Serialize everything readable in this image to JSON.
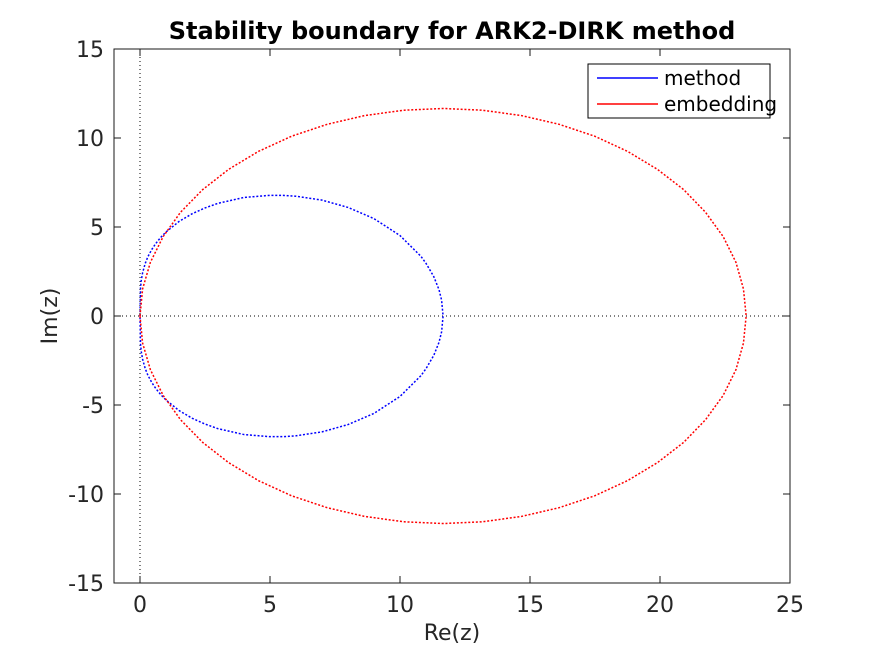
{
  "figure": {
    "background": "#ffffff",
    "axes_color": "#1a1a1a",
    "tick_text_color": "#262626"
  },
  "chart_data": {
    "type": "line",
    "title": "Stability boundary for ARK2-DIRK method",
    "xlabel": "Re(z)",
    "ylabel": "Im(z)",
    "xlim": [
      -1,
      25
    ],
    "ylim": [
      -15,
      15
    ],
    "xticks": [
      0,
      5,
      10,
      15,
      20,
      25
    ],
    "xtick_labels": [
      "0",
      "5",
      "10",
      "15",
      "20",
      "25"
    ],
    "yticks": [
      -15,
      -10,
      -5,
      0,
      5,
      10,
      15
    ],
    "ytick_labels": [
      "-15",
      "-10",
      "-5",
      "0",
      "5",
      "10",
      "15"
    ],
    "grid": false,
    "reference_lines": {
      "vertical_at_x": 0,
      "horizontal_at_y": 0,
      "style": "dotted",
      "color": "#000000"
    },
    "legend": {
      "position": "top-right",
      "border_color": "#000000",
      "background": "#ffffff"
    },
    "series": [
      {
        "name": "method",
        "color": "#0000ff",
        "style": "dotted",
        "symmetric_about_real_axis": true,
        "real_axis_extent": [
          0,
          11.657
        ],
        "max_imag": 6.79,
        "points_upper_half": [
          [
            0,
            0
          ],
          [
            0.02,
            1.57
          ],
          [
            0.05,
            2.01
          ],
          [
            0.1,
            2.43
          ],
          [
            0.2,
            2.95
          ],
          [
            0.3,
            3.32
          ],
          [
            0.45,
            3.73
          ],
          [
            0.6,
            4.06
          ],
          [
            0.8,
            4.42
          ],
          [
            1.0,
            4.72
          ],
          [
            1.5,
            5.31
          ],
          [
            2.0,
            5.74
          ],
          [
            2.5,
            6.07
          ],
          [
            3.0,
            6.33
          ],
          [
            4.0,
            6.66
          ],
          [
            5.0,
            6.78
          ],
          [
            5.5,
            6.78
          ],
          [
            6.0,
            6.73
          ],
          [
            7.0,
            6.51
          ],
          [
            8.0,
            6.1
          ],
          [
            9.0,
            5.47
          ],
          [
            10.0,
            4.52
          ],
          [
            10.8,
            3.36
          ],
          [
            11.0,
            2.96
          ],
          [
            11.3,
            2.21
          ],
          [
            11.5,
            1.48
          ],
          [
            11.6,
            0.89
          ],
          [
            11.657,
            0
          ]
        ]
      },
      {
        "name": "embedding",
        "color": "#ff0000",
        "style": "dotted",
        "symmetric_about_real_axis": true,
        "real_axis_extent": [
          0,
          23.314
        ],
        "max_imag": 11.66,
        "points_upper_half": [
          [
            0,
            0
          ],
          [
            0.1,
            1.52
          ],
          [
            0.4,
            3.02
          ],
          [
            0.89,
            4.46
          ],
          [
            1.56,
            5.83
          ],
          [
            2.41,
            7.1
          ],
          [
            3.41,
            8.24
          ],
          [
            4.56,
            9.25
          ],
          [
            5.83,
            10.1
          ],
          [
            7.2,
            10.77
          ],
          [
            8.64,
            11.26
          ],
          [
            10.14,
            11.56
          ],
          [
            11.66,
            11.66
          ],
          [
            13.18,
            11.56
          ],
          [
            14.67,
            11.26
          ],
          [
            16.12,
            10.77
          ],
          [
            17.49,
            10.1
          ],
          [
            18.75,
            9.25
          ],
          [
            19.9,
            8.24
          ],
          [
            20.91,
            7.1
          ],
          [
            21.75,
            5.83
          ],
          [
            22.43,
            4.46
          ],
          [
            22.92,
            3.02
          ],
          [
            23.21,
            1.52
          ],
          [
            23.314,
            0
          ]
        ]
      }
    ]
  }
}
